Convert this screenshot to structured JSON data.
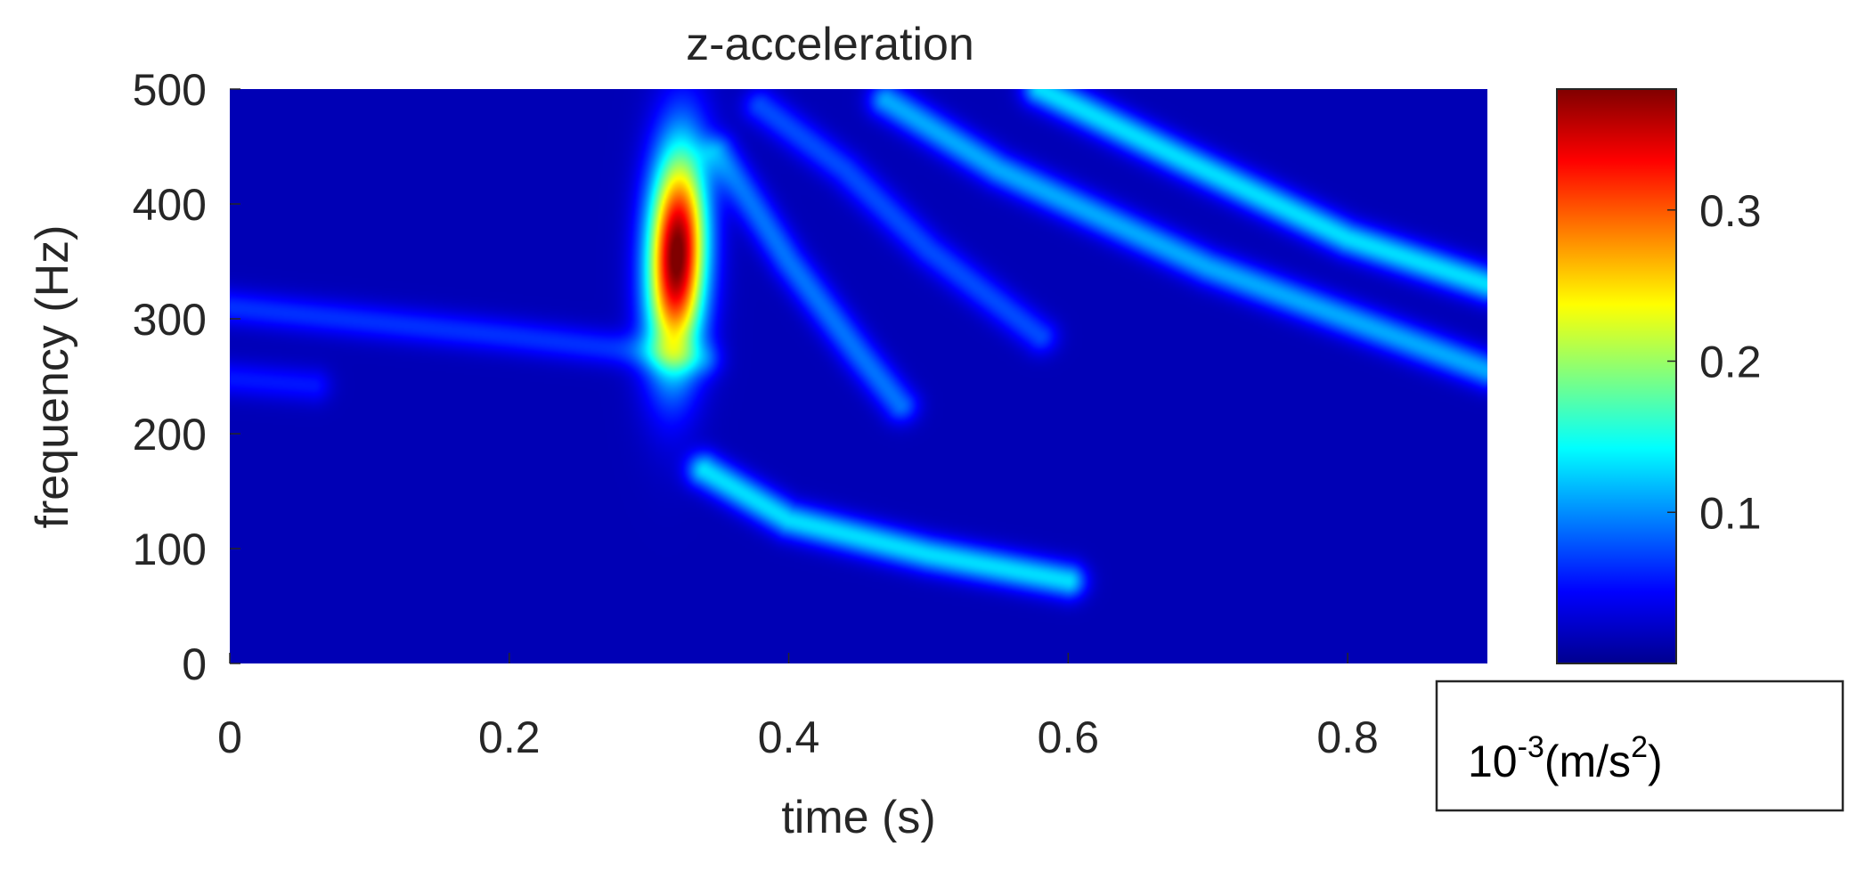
{
  "chart_data": {
    "type": "heatmap",
    "title": "z-acceleration",
    "xlabel": "time (s)",
    "ylabel": "frequency (Hz)",
    "xlim": [
      0,
      0.9
    ],
    "ylim": [
      0,
      500
    ],
    "x_ticks": [
      0,
      0.2,
      0.4,
      0.6,
      0.8
    ],
    "x_tick_labels": [
      "0",
      "0.2",
      "0.4",
      "0.6",
      "0.8"
    ],
    "y_ticks": [
      0,
      100,
      200,
      300,
      400,
      500
    ],
    "y_tick_labels": [
      "0",
      "100",
      "200",
      "300",
      "400",
      "500"
    ],
    "colorbar": {
      "colormap": "jet",
      "range": [
        0,
        0.38
      ],
      "ticks": [
        0.1,
        0.2,
        0.3
      ],
      "tick_labels": [
        "0.1",
        "0.2",
        "0.3"
      ],
      "unit_base": "10",
      "unit_exponent": "-3",
      "unit_body": "(m/s",
      "unit_power": "2",
      "unit_close": ")"
    },
    "background_value": 0.02,
    "features": [
      {
        "kind": "blob",
        "t": 0.32,
        "f": 355,
        "peak": 0.37
      },
      {
        "kind": "band",
        "points": [
          [
            0.0,
            310
          ],
          [
            0.2,
            285
          ],
          [
            0.34,
            265
          ]
        ],
        "peak": 0.045
      },
      {
        "kind": "band",
        "points": [
          [
            0.0,
            248
          ],
          [
            0.06,
            242
          ]
        ],
        "peak": 0.035
      },
      {
        "kind": "band",
        "points": [
          [
            0.34,
            168
          ],
          [
            0.4,
            125
          ],
          [
            0.5,
            95
          ],
          [
            0.6,
            72
          ]
        ],
        "peak": 0.11
      },
      {
        "kind": "band",
        "points": [
          [
            0.35,
            445
          ],
          [
            0.4,
            350
          ],
          [
            0.45,
            270
          ],
          [
            0.48,
            225
          ]
        ],
        "peak": 0.07
      },
      {
        "kind": "band",
        "points": [
          [
            0.38,
            485
          ],
          [
            0.44,
            430
          ],
          [
            0.5,
            360
          ],
          [
            0.58,
            285
          ]
        ],
        "peak": 0.055
      },
      {
        "kind": "band",
        "points": [
          [
            0.47,
            490
          ],
          [
            0.55,
            430
          ],
          [
            0.7,
            345
          ],
          [
            0.9,
            255
          ]
        ],
        "peak": 0.09
      },
      {
        "kind": "band",
        "points": [
          [
            0.58,
            500
          ],
          [
            0.68,
            440
          ],
          [
            0.8,
            370
          ],
          [
            0.9,
            330
          ]
        ],
        "peak": 0.11
      }
    ]
  }
}
